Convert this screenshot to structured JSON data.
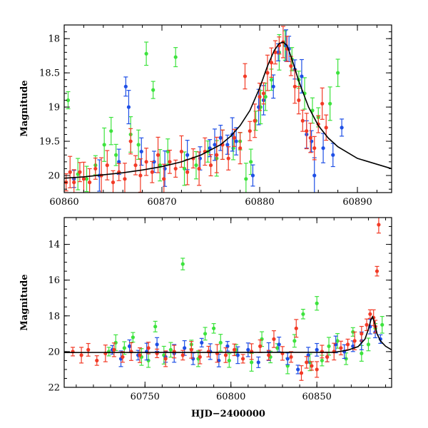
{
  "colors": {
    "green": "#3de33d",
    "blue": "#1e4fe6",
    "red": "#f23a26",
    "model": "#000000"
  },
  "chart_data": [
    {
      "type": "scatter",
      "xlabel": "",
      "ylabel": "Magnitude",
      "xlim": [
        60860,
        60893.5
      ],
      "ylim": [
        20.25,
        17.8
      ],
      "y_inverted": true,
      "x_ticks": [
        60860,
        60870,
        60880,
        60890
      ],
      "y_ticks": [
        18,
        18.5,
        19,
        19.5,
        20
      ],
      "y_tick_labels": [
        "18",
        "18.5",
        "19",
        "19.5",
        "20"
      ],
      "model_curve": {
        "type": "line",
        "x": [
          60860,
          60862,
          60864,
          60866,
          60868,
          60870,
          60872,
          60874,
          60876,
          60877,
          60878,
          60879,
          60880,
          60880.8,
          60881.5,
          60882.0,
          60882.4,
          60882.8,
          60883.3,
          60884,
          60885,
          60886,
          60887,
          60888,
          60890,
          60893.5
        ],
        "y": [
          20.04,
          20.02,
          19.99,
          19.96,
          19.92,
          19.87,
          19.8,
          19.7,
          19.55,
          19.43,
          19.27,
          19.05,
          18.72,
          18.4,
          18.17,
          18.07,
          18.05,
          18.1,
          18.3,
          18.62,
          19.0,
          19.27,
          19.45,
          19.58,
          19.75,
          19.9
        ]
      },
      "series": [
        {
          "color": "green",
          "x": [
            60860.4,
            60861.4,
            60862.3,
            60863.2,
            60864.1,
            60864.8,
            60865.3,
            60866.8,
            60867.6,
            60868.4,
            60869.1,
            60869.8,
            60870.6,
            60871.4,
            60872.3,
            60873.5,
            60874.7,
            60875.6,
            60876.2,
            60877.3,
            60878.0,
            60878.6,
            60879.1,
            60879.6,
            60880.1,
            60880.6,
            60881.2,
            60882.0,
            60882.6,
            60883.3,
            60884.0,
            60884.6,
            60885.4,
            60886.0,
            60887.2,
            60888.0
          ],
          "y": [
            18.9,
            19.98,
            20.05,
            19.85,
            19.55,
            19.35,
            19.7,
            19.4,
            19.55,
            18.22,
            18.75,
            19.85,
            19.65,
            18.27,
            19.9,
            19.85,
            19.65,
            19.75,
            19.55,
            19.6,
            19.5,
            20.05,
            19.8,
            19.2,
            19.0,
            18.85,
            18.6,
            18.2,
            18.1,
            18.3,
            18.6,
            18.8,
            19.05,
            19.15,
            18.95,
            18.5
          ]
        },
        {
          "color": "blue",
          "x": [
            60861.0,
            60863.6,
            60865.6,
            60866.3,
            60866.6,
            60867.9,
            60869.2,
            60870.3,
            60872.6,
            60873.9,
            60874.9,
            60875.4,
            60876.0,
            60876.7,
            60877.2,
            60877.6,
            60879.3,
            60879.9,
            60880.4,
            60881.4,
            60881.9,
            60882.7,
            60883.0,
            60883.6,
            60884.3,
            60884.8,
            60885.3,
            60885.6,
            60886.5,
            60887.5,
            60888.4
          ],
          "y": [
            20.05,
            20.0,
            19.8,
            18.7,
            19.0,
            19.65,
            19.8,
            19.9,
            19.7,
            19.75,
            19.6,
            19.55,
            19.45,
            19.55,
            19.4,
            19.5,
            20.0,
            19.0,
            18.9,
            18.7,
            18.2,
            18.1,
            18.15,
            18.45,
            18.55,
            19.4,
            19.5,
            20.0,
            19.6,
            19.7,
            19.3
          ]
        },
        {
          "color": "red",
          "x": [
            60860.2,
            60860.6,
            60861.0,
            60861.6,
            60862.0,
            60862.6,
            60863.2,
            60863.8,
            60864.4,
            60865.0,
            60865.6,
            60866.2,
            60866.8,
            60867.3,
            60867.8,
            60868.4,
            60869.0,
            60869.6,
            60870.2,
            60870.8,
            60871.4,
            60872.0,
            60872.6,
            60873.2,
            60873.8,
            60874.4,
            60875.0,
            60875.6,
            60876.2,
            60876.8,
            60877.4,
            60878.0,
            60878.5,
            60879.0,
            60879.5,
            60880.0,
            60880.4,
            60880.8,
            60881.2,
            60881.6,
            60882.0,
            60882.4,
            60882.8,
            60883.2,
            60883.6,
            60884.0,
            60884.4,
            60884.8,
            60885.2,
            60885.6,
            60886.0,
            60886.4,
            60886.8
          ],
          "y": [
            20.1,
            19.95,
            20.1,
            19.95,
            20.05,
            20.1,
            19.9,
            20.0,
            19.85,
            20.1,
            19.95,
            20.05,
            19.5,
            19.85,
            20.0,
            19.8,
            19.95,
            19.7,
            20.05,
            19.8,
            19.9,
            19.65,
            19.95,
            19.75,
            19.9,
            19.65,
            19.85,
            19.7,
            19.55,
            19.75,
            19.45,
            19.6,
            18.55,
            19.35,
            19.2,
            18.85,
            18.8,
            18.5,
            18.35,
            18.2,
            18.1,
            18.05,
            18.15,
            18.4,
            18.7,
            18.9,
            19.2,
            19.35,
            19.45,
            19.6,
            19.25,
            18.95,
            19.3
          ]
        }
      ]
    },
    {
      "type": "scatter",
      "xlabel": "HJD−2400000",
      "ylabel": "Magnitude",
      "xlim": [
        60703,
        60893.5
      ],
      "ylim": [
        22.0,
        12.5
      ],
      "y_inverted": true,
      "x_ticks": [
        60750,
        60800,
        60850
      ],
      "y_ticks": [
        14,
        16,
        18,
        20,
        22
      ],
      "y_tick_labels": [
        "14",
        "16",
        "18",
        "20",
        "22"
      ],
      "model_curve": {
        "type": "line",
        "x": [
          60703,
          60860,
          60868,
          60874,
          60878,
          60880,
          60881.5,
          60882.4,
          60883.5,
          60885,
          60887,
          60890,
          60893.5
        ],
        "y": [
          20.05,
          20.04,
          19.92,
          19.72,
          19.3,
          18.75,
          18.2,
          18.05,
          18.35,
          19.0,
          19.4,
          19.7,
          19.9
        ]
      },
      "series": [
        {
          "color": "green",
          "x": [
            60729,
            60733,
            60738,
            60743,
            60748,
            60752,
            60756,
            60761,
            60765,
            60772,
            60777,
            60781,
            60785,
            60790,
            60794,
            60799,
            60803,
            60812,
            60818,
            60823,
            60827,
            60833,
            60837,
            60842,
            60846,
            60850,
            60853,
            60857,
            60862,
            60867,
            60871,
            60876,
            60880,
            60884,
            60888
          ],
          "y": [
            20.0,
            19.5,
            19.8,
            19.2,
            20.3,
            20.5,
            18.6,
            20.2,
            19.9,
            15.1,
            19.6,
            20.4,
            19.0,
            18.7,
            19.5,
            20.5,
            19.9,
            20.6,
            19.3,
            20.3,
            19.8,
            20.8,
            19.4,
            17.9,
            20.6,
            17.3,
            20.5,
            19.7,
            19.4,
            20.4,
            18.9,
            20.1,
            19.6,
            18.7,
            18.5
          ]
        },
        {
          "color": "blue",
          "x": [
            60731,
            60736,
            60741,
            60746,
            60751,
            60757,
            60762,
            60767,
            60773,
            60778,
            60783,
            60788,
            60793,
            60798,
            60804,
            60810,
            60816,
            60822,
            60828,
            60833,
            60839,
            60845,
            60850,
            60856,
            60861,
            60866,
            60871,
            60876,
            60881,
            60884,
            60887
          ],
          "y": [
            19.9,
            20.4,
            19.7,
            20.2,
            20.0,
            19.6,
            20.3,
            20.1,
            19.8,
            20.4,
            19.5,
            20.0,
            20.5,
            19.7,
            20.2,
            19.9,
            20.6,
            20.0,
            19.6,
            20.4,
            21.0,
            20.2,
            19.9,
            20.3,
            19.6,
            20.0,
            19.7,
            19.4,
            18.6,
            18.9,
            19.3
          ]
        },
        {
          "color": "red",
          "x": [
            60708,
            60713,
            60717,
            60722,
            60727,
            60732,
            60737,
            60742,
            60747,
            60752,
            60757,
            60762,
            60767,
            60772,
            60777,
            60782,
            60787,
            60792,
            60797,
            60802,
            60807,
            60812,
            60817,
            60822,
            60825,
            60830,
            60835,
            60838,
            60841,
            60844,
            60847,
            60850,
            60853,
            60856,
            60860,
            60864,
            60868,
            60872,
            60876,
            60879,
            60881,
            60883,
            60884,
            60885,
            60886
          ],
          "y": [
            20.0,
            20.2,
            19.9,
            20.5,
            20.1,
            19.9,
            20.3,
            20.0,
            20.2,
            19.8,
            20.1,
            20.4,
            20.0,
            20.2,
            19.9,
            20.3,
            20.0,
            20.1,
            20.2,
            19.9,
            20.4,
            20.0,
            19.7,
            20.2,
            19.3,
            20.1,
            20.3,
            18.7,
            21.2,
            20.6,
            20.8,
            21.0,
            20.0,
            20.3,
            20.0,
            19.8,
            19.6,
            19.4,
            19.0,
            18.5,
            17.9,
            18.1,
            18.6,
            15.5,
            12.9
          ]
        }
      ]
    }
  ]
}
